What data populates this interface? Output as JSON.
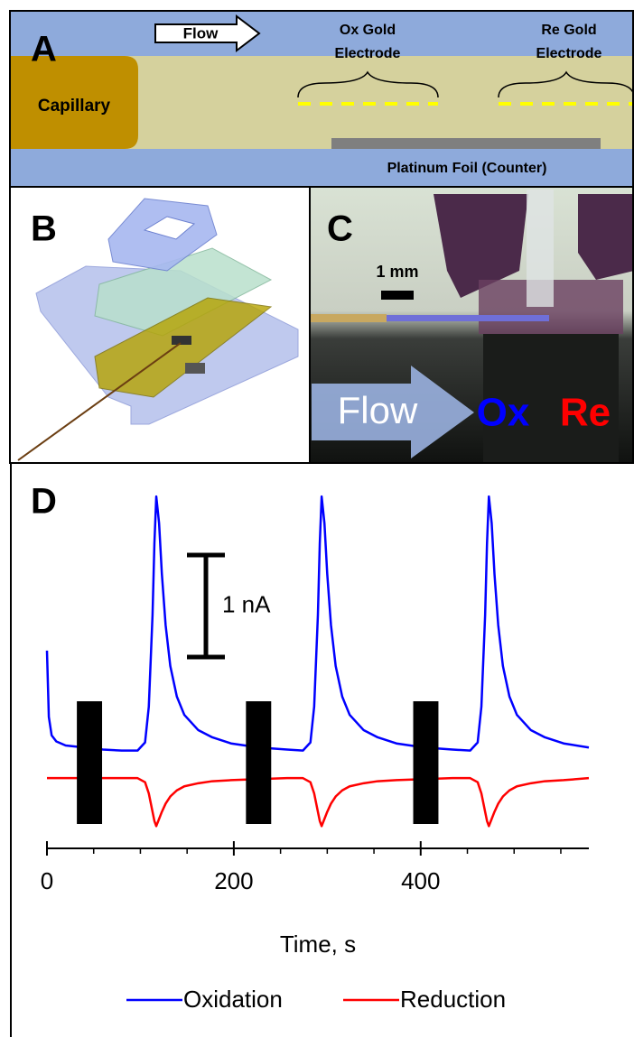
{
  "panel_a": {
    "label": "A",
    "flow": "Flow",
    "ox_electrode": [
      "Ox Gold",
      "Electrode"
    ],
    "re_electrode": [
      "Re Gold",
      "Electrode"
    ],
    "capillary": "Capillary",
    "counter": "Platinum Foil (Counter)"
  },
  "panel_b": {
    "label": "B"
  },
  "panel_c": {
    "label": "C",
    "scale": "1 mm",
    "flow": "Flow",
    "ox": "Ox",
    "re": "Re"
  },
  "chart_data": {
    "type": "line",
    "panel_label": "D",
    "x_label": "Time, s",
    "x": [
      0,
      2,
      5,
      10,
      20,
      40,
      60,
      80,
      97,
      105,
      109,
      113,
      115,
      117,
      120,
      123,
      127,
      132,
      139,
      147,
      162,
      177,
      197,
      227,
      257,
      274,
      282,
      286,
      290,
      292,
      294,
      297,
      300,
      304,
      309,
      316,
      324,
      339,
      354,
      374,
      404,
      434,
      453,
      461,
      465,
      469,
      471,
      473,
      476,
      479,
      483,
      488,
      495,
      503,
      518,
      533,
      553,
      580
    ],
    "series": [
      {
        "name": "Oxidation",
        "color": "#0000ff",
        "values": [
          1.25,
          0.6,
          0.42,
          0.36,
          0.32,
          0.3,
          0.28,
          0.27,
          0.27,
          0.35,
          0.7,
          1.6,
          2.3,
          2.76,
          2.5,
          2.0,
          1.5,
          1.1,
          0.8,
          0.62,
          0.47,
          0.4,
          0.34,
          0.3,
          0.28,
          0.27,
          0.35,
          0.7,
          1.6,
          2.3,
          2.76,
          2.5,
          2.0,
          1.5,
          1.1,
          0.8,
          0.62,
          0.47,
          0.4,
          0.34,
          0.3,
          0.28,
          0.27,
          0.35,
          0.7,
          1.6,
          2.3,
          2.76,
          2.5,
          2.0,
          1.5,
          1.1,
          0.8,
          0.62,
          0.47,
          0.4,
          0.34,
          0.3
        ]
      },
      {
        "name": "Reduction",
        "color": "#ff0000",
        "values": [
          0,
          0,
          0,
          0,
          0,
          0,
          0,
          0,
          0,
          -0.04,
          -0.15,
          -0.33,
          -0.42,
          -0.47,
          -0.4,
          -0.33,
          -0.25,
          -0.18,
          -0.12,
          -0.08,
          -0.05,
          -0.03,
          -0.02,
          -0.01,
          0,
          0,
          -0.04,
          -0.15,
          -0.33,
          -0.42,
          -0.47,
          -0.4,
          -0.33,
          -0.25,
          -0.18,
          -0.12,
          -0.08,
          -0.05,
          -0.03,
          -0.02,
          -0.01,
          0,
          0,
          -0.04,
          -0.15,
          -0.33,
          -0.42,
          -0.47,
          -0.4,
          -0.33,
          -0.25,
          -0.18,
          -0.12,
          -0.08,
          -0.05,
          -0.03,
          -0.02,
          0
        ]
      }
    ],
    "xlim": [
      0,
      580
    ],
    "ylim": [
      -0.6,
      2.85
    ],
    "xticks": [
      0,
      200,
      400
    ],
    "xminorticks": [
      50,
      100,
      150,
      250,
      300,
      350,
      450,
      500,
      550
    ],
    "stimulus_intervals": [
      [
        32,
        59
      ],
      [
        213,
        240
      ],
      [
        392,
        419
      ]
    ],
    "scale_bar": {
      "value": 1,
      "label": "1 nA"
    },
    "legend": "bottom"
  }
}
